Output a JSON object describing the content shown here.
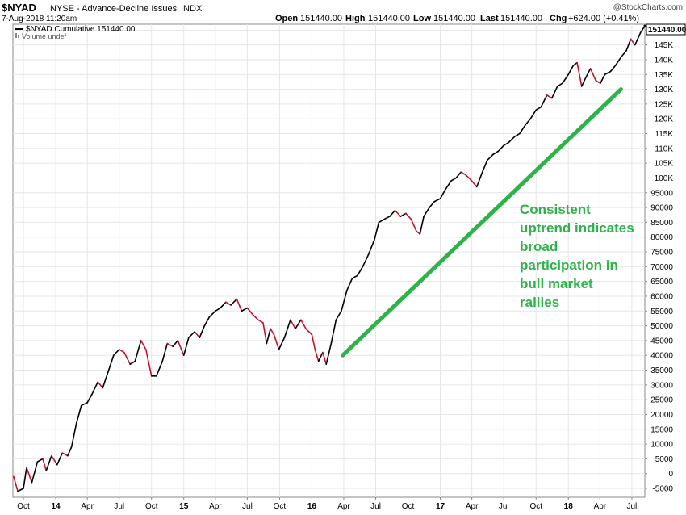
{
  "header": {
    "symbol": "$NYAD",
    "name": "NYSE - Advance-Decline Issues",
    "exchange": "INDX",
    "datetime": "7-Aug-2018 11:20am",
    "watermark": "@StockCharts.com",
    "open_label": "Open",
    "open_value": "151440.00",
    "high_label": "High",
    "high_value": "151440.00",
    "low_label": "Low",
    "low_value": "151440.00",
    "last_label": "Last",
    "last_value": "151440.00",
    "chg_label": "Chg",
    "chg_value": "+624.00 (+0.41%)"
  },
  "legend": {
    "series_label": "$NYAD Cumulative 151440.00",
    "volume_label": "Volume undef"
  },
  "price_label": "151440.00",
  "annotation": {
    "lines": [
      "Consistent",
      "uptrend indicates",
      "broad",
      "participation in",
      "bull market",
      "rallies"
    ],
    "color": "#2db34a"
  },
  "colors": {
    "line_dark": "#000000",
    "line_down": "#c8102e",
    "trend": "#2db34a",
    "grid": "#e6e6e6"
  },
  "chart_data": {
    "type": "line",
    "title": "$NYAD NYSE - Advance-Decline Issues INDX",
    "ylim": [
      -8000,
      152000
    ],
    "y_ticks": [
      -5000,
      0,
      5000,
      10000,
      15000,
      20000,
      25000,
      30000,
      35000,
      40000,
      45000,
      50000,
      55000,
      60000,
      65000,
      70000,
      75000,
      80000,
      85000,
      90000,
      95000,
      100000,
      105000,
      110000,
      115000,
      120000,
      125000,
      130000,
      135000,
      140000,
      145000,
      150000
    ],
    "y_tick_labels": [
      "-5000",
      "0",
      "5000",
      "10000",
      "15000",
      "20000",
      "25000",
      "30000",
      "35000",
      "40000",
      "45000",
      "50000",
      "55000",
      "60000",
      "65000",
      "70000",
      "75000",
      "80000",
      "85000",
      "90000",
      "95000",
      "100K",
      "105K",
      "110K",
      "115K",
      "120K",
      "125K",
      "130K",
      "135K",
      "140K",
      "145K",
      "150K"
    ],
    "x_range": [
      "2013-09-01",
      "2018-08-07"
    ],
    "x_ticks": [
      {
        "date": "2013-10-01",
        "label": "Oct",
        "major": false
      },
      {
        "date": "2014-01-01",
        "label": "14",
        "major": true
      },
      {
        "date": "2014-04-01",
        "label": "Apr",
        "major": false
      },
      {
        "date": "2014-07-01",
        "label": "Jul",
        "major": false
      },
      {
        "date": "2014-10-01",
        "label": "Oct",
        "major": false
      },
      {
        "date": "2015-01-01",
        "label": "15",
        "major": true
      },
      {
        "date": "2015-04-01",
        "label": "Apr",
        "major": false
      },
      {
        "date": "2015-07-01",
        "label": "Jul",
        "major": false
      },
      {
        "date": "2015-10-01",
        "label": "Oct",
        "major": false
      },
      {
        "date": "2016-01-01",
        "label": "16",
        "major": true
      },
      {
        "date": "2016-04-01",
        "label": "Apr",
        "major": false
      },
      {
        "date": "2016-07-01",
        "label": "Jul",
        "major": false
      },
      {
        "date": "2016-10-01",
        "label": "Oct",
        "major": false
      },
      {
        "date": "2017-01-01",
        "label": "17",
        "major": true
      },
      {
        "date": "2017-04-01",
        "label": "Apr",
        "major": false
      },
      {
        "date": "2017-07-01",
        "label": "Jul",
        "major": false
      },
      {
        "date": "2017-10-01",
        "label": "Oct",
        "major": false
      },
      {
        "date": "2018-01-01",
        "label": "18",
        "major": true
      },
      {
        "date": "2018-04-01",
        "label": "Apr",
        "major": false
      },
      {
        "date": "2018-07-01",
        "label": "Jul",
        "major": false
      }
    ],
    "grid": true,
    "series": [
      {
        "name": "$NYAD Cumulative",
        "x": [
          "2013-09-03",
          "2013-09-15",
          "2013-10-01",
          "2013-10-10",
          "2013-10-25",
          "2013-11-10",
          "2013-11-25",
          "2013-12-05",
          "2013-12-20",
          "2014-01-05",
          "2014-01-20",
          "2014-02-04",
          "2014-02-15",
          "2014-03-01",
          "2014-03-15",
          "2014-04-01",
          "2014-04-15",
          "2014-05-01",
          "2014-05-15",
          "2014-06-01",
          "2014-06-15",
          "2014-07-01",
          "2014-07-15",
          "2014-08-01",
          "2014-08-15",
          "2014-09-01",
          "2014-09-15",
          "2014-10-01",
          "2014-10-15",
          "2014-11-01",
          "2014-11-15",
          "2014-12-01",
          "2014-12-15",
          "2015-01-01",
          "2015-01-15",
          "2015-02-01",
          "2015-02-15",
          "2015-03-01",
          "2015-03-15",
          "2015-04-01",
          "2015-04-15",
          "2015-05-01",
          "2015-05-15",
          "2015-06-01",
          "2015-06-15",
          "2015-07-01",
          "2015-07-15",
          "2015-08-01",
          "2015-08-15",
          "2015-08-25",
          "2015-09-05",
          "2015-09-15",
          "2015-09-29",
          "2015-10-15",
          "2015-11-01",
          "2015-11-15",
          "2015-12-01",
          "2015-12-15",
          "2016-01-01",
          "2016-01-10",
          "2016-01-20",
          "2016-02-01",
          "2016-02-11",
          "2016-02-25",
          "2016-03-10",
          "2016-03-25",
          "2016-04-10",
          "2016-04-25",
          "2016-05-10",
          "2016-05-25",
          "2016-06-10",
          "2016-06-27",
          "2016-07-10",
          "2016-07-25",
          "2016-08-10",
          "2016-08-25",
          "2016-09-10",
          "2016-09-25",
          "2016-10-10",
          "2016-10-25",
          "2016-11-04",
          "2016-11-15",
          "2016-12-01",
          "2016-12-15",
          "2017-01-01",
          "2017-01-15",
          "2017-02-01",
          "2017-02-15",
          "2017-03-01",
          "2017-03-15",
          "2017-04-01",
          "2017-04-15",
          "2017-05-01",
          "2017-05-15",
          "2017-06-01",
          "2017-06-15",
          "2017-07-01",
          "2017-07-15",
          "2017-08-01",
          "2017-08-15",
          "2017-09-01",
          "2017-09-15",
          "2017-10-01",
          "2017-10-15",
          "2017-11-01",
          "2017-11-15",
          "2017-12-01",
          "2017-12-15",
          "2018-01-01",
          "2018-01-15",
          "2018-01-26",
          "2018-02-08",
          "2018-02-20",
          "2018-03-05",
          "2018-03-20",
          "2018-04-02",
          "2018-04-15",
          "2018-05-01",
          "2018-05-15",
          "2018-06-01",
          "2018-06-15",
          "2018-06-28",
          "2018-07-10",
          "2018-07-25",
          "2018-08-07"
        ],
        "y": [
          -1000,
          -6000,
          -5000,
          2000,
          -3000,
          4000,
          5000,
          1000,
          6000,
          3000,
          7000,
          6000,
          9000,
          17000,
          23000,
          24000,
          27000,
          31000,
          29000,
          35000,
          40000,
          42000,
          41000,
          37000,
          38000,
          45000,
          42000,
          33000,
          33000,
          38000,
          44000,
          43000,
          45000,
          40000,
          46000,
          48000,
          46000,
          50000,
          53000,
          55000,
          56000,
          58000,
          57000,
          59000,
          55000,
          56000,
          54000,
          52000,
          51000,
          44000,
          49000,
          47000,
          42000,
          46000,
          52000,
          49000,
          52000,
          49000,
          47000,
          42000,
          38000,
          41000,
          37000,
          44000,
          52000,
          55000,
          62000,
          66000,
          67000,
          70000,
          74000,
          79000,
          85000,
          86000,
          87000,
          89000,
          87000,
          88000,
          86000,
          82000,
          81000,
          87000,
          90000,
          92000,
          93000,
          96000,
          99000,
          100000,
          102000,
          101000,
          99000,
          97000,
          102000,
          106000,
          108000,
          109000,
          111000,
          112000,
          114000,
          115000,
          118000,
          120000,
          123000,
          124000,
          128000,
          127000,
          131000,
          132000,
          135000,
          138000,
          139000,
          131000,
          134000,
          137000,
          133000,
          132000,
          135000,
          136000,
          138000,
          141000,
          143000,
          147000,
          145000,
          149000,
          151440
        ]
      }
    ],
    "trendline": {
      "x": [
        "2016-03-29",
        "2018-05-31"
      ],
      "y": [
        40000,
        130000
      ]
    }
  }
}
